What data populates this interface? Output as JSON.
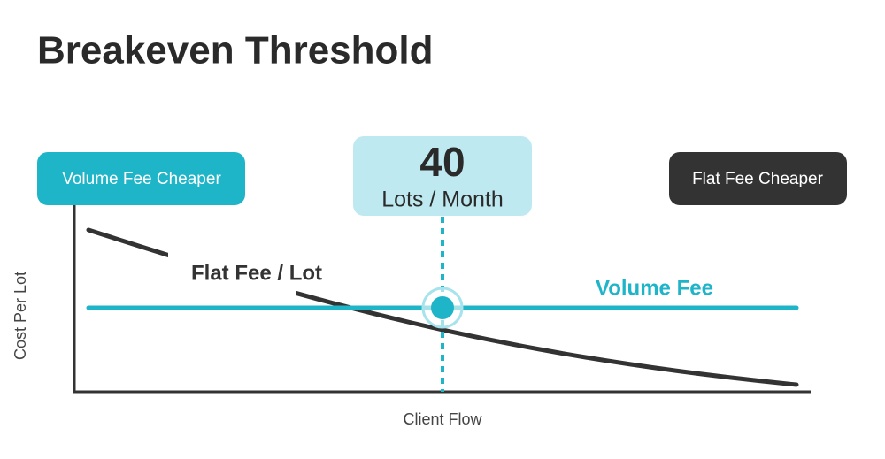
{
  "title": "Breakeven Threshold",
  "left_badge": "Volume Fee Cheaper",
  "right_badge": "Flat Fee Cheaper",
  "threshold": {
    "number": "40",
    "unit": "Lots / Month"
  },
  "curves": {
    "flat": "Flat Fee / Lot",
    "volume": "Volume Fee"
  },
  "axes": {
    "y_label": "Cost Per Lot",
    "x_label": "Client Flow"
  }
}
